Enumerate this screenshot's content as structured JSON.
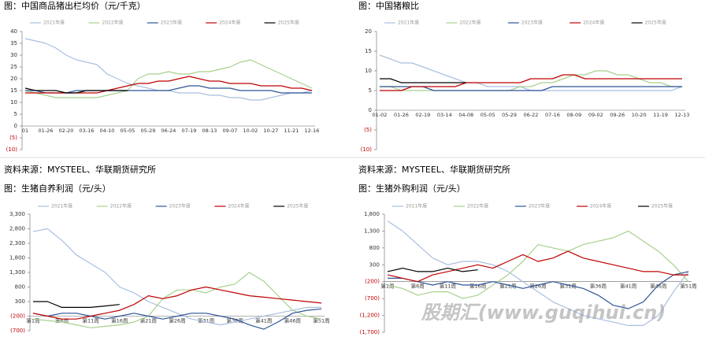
{
  "chart_data": [
    {
      "type": "line",
      "title": "图：中国商品猪出栏均价（元/千克）",
      "source": "资料来源：MYSTEEL、华联期货研究所",
      "categories": [
        "01",
        null,
        "01-26",
        null,
        "02-20",
        null,
        "03-16",
        null,
        "04-10",
        null,
        "05-05",
        null,
        "05-29",
        null,
        "06-24",
        null,
        "07-19",
        null,
        "08-13",
        null,
        "09-07",
        null,
        "10-02",
        null,
        "10-27",
        null,
        "11-21",
        null,
        "12-16"
      ],
      "ylim": [
        -10,
        40
      ],
      "yticks": [
        40,
        35,
        30,
        25,
        20,
        15,
        10,
        5,
        0,
        {
          "value": -5,
          "label": "(5)"
        },
        {
          "value": -10,
          "label": "(10)"
        }
      ],
      "x_axis_at": 0,
      "series": [
        {
          "name": "2021年度",
          "color": "#a9bfe0",
          "values": [
            37,
            36,
            35,
            33,
            30,
            28,
            27,
            26,
            22,
            20,
            18,
            17,
            16,
            15,
            15,
            14,
            14,
            14,
            13,
            13,
            12,
            12,
            11,
            11,
            12,
            13,
            14,
            14,
            15
          ]
        },
        {
          "name": "2022年度",
          "color": "#a8d08d",
          "values": [
            15,
            14,
            13,
            12,
            12,
            12,
            12,
            12,
            13,
            14,
            15,
            20,
            22,
            22,
            23,
            22,
            22,
            23,
            23,
            24,
            25,
            27,
            28,
            26,
            24,
            22,
            20,
            18,
            16
          ]
        },
        {
          "name": "2023年度",
          "color": "#2f5597",
          "values": [
            15,
            15,
            14,
            14,
            14,
            15,
            15,
            15,
            15,
            15,
            15,
            15,
            15,
            15,
            15,
            16,
            17,
            17,
            16,
            16,
            16,
            15,
            15,
            15,
            15,
            14,
            14,
            14,
            14
          ]
        },
        {
          "name": "2024年度",
          "color": "#c00000",
          "values": [
            14,
            14,
            14,
            14,
            14,
            14,
            14,
            14,
            15,
            16,
            17,
            18,
            18,
            19,
            19,
            20,
            21,
            20,
            19,
            19,
            18,
            18,
            18,
            17,
            17,
            17,
            16,
            16,
            15
          ]
        },
        {
          "name": "2025年度",
          "color": "#000000",
          "values": [
            16,
            15,
            15,
            15,
            14,
            14,
            15,
            15,
            15,
            15,
            15,
            null,
            null,
            null,
            null,
            null,
            null,
            null,
            null,
            null,
            null,
            null,
            null,
            null,
            null,
            null,
            null,
            null,
            null
          ]
        }
      ]
    },
    {
      "type": "line",
      "title": "图：中国猪粮比",
      "source": "资料来源：MYSTEEL、华联期货研究所",
      "categories": [
        "01-02",
        null,
        "01-26",
        null,
        "02-19",
        null,
        "03-14",
        null,
        "04-08",
        null,
        "05-05",
        null,
        "05-29",
        null,
        "06-22",
        null,
        "07-16",
        null,
        "08-09",
        null,
        "09-02",
        null,
        "09-26",
        null,
        "10-20",
        null,
        "11-19",
        null,
        "12-13"
      ],
      "ylim": [
        -10,
        20
      ],
      "yticks": [
        20,
        15,
        10,
        5,
        0,
        {
          "value": -5,
          "label": "(5)"
        },
        {
          "value": -10,
          "label": "(10)"
        }
      ],
      "x_axis_at": 0,
      "series": [
        {
          "name": "2021年度",
          "color": "#a9bfe0",
          "values": [
            14,
            13,
            12,
            12,
            11,
            10,
            9,
            8,
            7,
            7,
            6,
            6,
            6,
            6,
            5,
            5,
            5,
            5,
            5,
            5,
            5,
            5,
            5,
            5,
            5,
            5,
            5,
            5,
            6
          ]
        },
        {
          "name": "2022年度",
          "color": "#a8d08d",
          "values": [
            6,
            6,
            5,
            5,
            5,
            5,
            5,
            5,
            5,
            5,
            5,
            5,
            5,
            6,
            6,
            7,
            7,
            8,
            9,
            9,
            10,
            10,
            9,
            9,
            8,
            7,
            7,
            6,
            6
          ]
        },
        {
          "name": "2023年度",
          "color": "#2f5597",
          "values": [
            6,
            6,
            6,
            6,
            6,
            5,
            5,
            5,
            5,
            5,
            5,
            5,
            5,
            5,
            5,
            5,
            6,
            6,
            6,
            6,
            6,
            6,
            6,
            6,
            6,
            6,
            6,
            6,
            6
          ]
        },
        {
          "name": "2024年度",
          "color": "#c00000",
          "values": [
            5,
            5,
            5,
            6,
            6,
            6,
            6,
            6,
            7,
            7,
            7,
            7,
            7,
            7,
            8,
            8,
            8,
            9,
            9,
            8,
            8,
            8,
            8,
            8,
            8,
            8,
            8,
            8,
            8
          ]
        },
        {
          "name": "2025年度",
          "color": "#000000",
          "values": [
            8,
            8,
            7,
            7,
            7,
            7,
            7,
            7,
            7,
            null,
            null,
            null,
            null,
            null,
            null,
            null,
            null,
            null,
            null,
            null,
            null,
            null,
            null,
            null,
            null,
            null,
            null,
            null,
            null
          ]
        }
      ]
    },
    {
      "type": "line",
      "title": "图：生猪自养利润（元/头）",
      "categories": [
        "第1周",
        null,
        "第6周",
        null,
        "第11周",
        null,
        "第16周",
        null,
        "第21周",
        null,
        "第26周",
        null,
        "第31周",
        null,
        "第36周",
        null,
        "第41周",
        null,
        "第46周",
        null,
        "第51周"
      ],
      "ylim": [
        -700,
        3300
      ],
      "yticks": [
        {
          "value": 3300,
          "label": "3,300"
        },
        {
          "value": 2800,
          "label": "2,800"
        },
        {
          "value": 2300,
          "label": "2,300"
        },
        {
          "value": 1800,
          "label": "1,800"
        },
        {
          "value": 1300,
          "label": "1,300"
        },
        800,
        300,
        {
          "value": -200,
          "label": "(200)"
        },
        {
          "value": -700,
          "label": "(700)"
        }
      ],
      "x_axis_at": -200,
      "series": [
        {
          "name": "2021年度",
          "color": "#a9bfe0",
          "values": [
            2700,
            2800,
            2400,
            1900,
            1600,
            1300,
            800,
            600,
            300,
            100,
            -100,
            -300,
            -400,
            -500,
            -400,
            -300,
            -200,
            -100,
            0,
            100,
            100
          ]
        },
        {
          "name": "2022年度",
          "color": "#a8d08d",
          "values": [
            -300,
            -350,
            -400,
            -500,
            -600,
            -550,
            -500,
            -400,
            -200,
            400,
            700,
            700,
            600,
            800,
            900,
            1300,
            1000,
            500,
            0,
            -200,
            -300
          ]
        },
        {
          "name": "2023年度",
          "color": "#2f5597",
          "values": [
            -100,
            -200,
            -100,
            -100,
            -200,
            -300,
            -200,
            -100,
            -200,
            -300,
            -200,
            -100,
            -100,
            -200,
            -300,
            -500,
            -650,
            -400,
            -100,
            0,
            50
          ]
        },
        {
          "name": "2024年度",
          "color": "#c00000",
          "values": [
            -100,
            -200,
            -300,
            -300,
            -200,
            -100,
            0,
            200,
            500,
            400,
            500,
            700,
            800,
            700,
            600,
            500,
            450,
            400,
            350,
            300,
            250
          ]
        },
        {
          "name": "2025年度",
          "color": "#000000",
          "values": [
            300,
            300,
            100,
            100,
            100,
            150,
            200,
            null,
            null,
            null,
            null,
            null,
            null,
            null,
            null,
            null,
            null,
            null,
            null,
            null,
            null
          ]
        }
      ]
    },
    {
      "type": "line",
      "title": "图：生猪外购利润（元/头）",
      "categories": [
        "第1周",
        null,
        "第6周",
        null,
        "第11周",
        null,
        "第16周",
        null,
        "第21周",
        null,
        "第26周",
        null,
        "第31周",
        null,
        "第36周",
        null,
        "第41周",
        null,
        "第46周",
        null,
        "第51周"
      ],
      "ylim": [
        -1700,
        1800
      ],
      "yticks": [
        {
          "value": 1800,
          "label": "1,800"
        },
        {
          "value": 1300,
          "label": "1,300"
        },
        800,
        300,
        {
          "value": -200,
          "label": "(200)"
        },
        {
          "value": -700,
          "label": "(700)"
        },
        {
          "value": -1200,
          "label": "(1,200)"
        },
        {
          "value": -1700,
          "label": "(1,700)"
        }
      ],
      "x_axis_at": -200,
      "series": [
        {
          "name": "2021年度",
          "color": "#a9bfe0",
          "values": [
            1600,
            1300,
            900,
            500,
            300,
            400,
            400,
            300,
            100,
            -200,
            -500,
            -800,
            -1000,
            -1200,
            -1300,
            -1400,
            -1500,
            -1500,
            -1200,
            -500,
            100
          ]
        },
        {
          "name": "2022年度",
          "color": "#a8d08d",
          "values": [
            -300,
            -400,
            -600,
            -500,
            -500,
            -700,
            -600,
            -300,
            0,
            400,
            900,
            800,
            700,
            900,
            1000,
            1100,
            1300,
            1000,
            700,
            300,
            -200
          ]
        },
        {
          "name": "2023年度",
          "color": "#2f5597",
          "values": [
            -100,
            -100,
            -200,
            -300,
            -200,
            -300,
            -300,
            -200,
            -300,
            -400,
            -300,
            -200,
            -300,
            -400,
            -600,
            -900,
            -1000,
            -800,
            -300,
            0,
            100
          ]
        },
        {
          "name": "2024年度",
          "color": "#c00000",
          "values": [
            0,
            -100,
            -200,
            0,
            100,
            200,
            300,
            200,
            400,
            600,
            400,
            500,
            700,
            500,
            400,
            300,
            200,
            100,
            100,
            0,
            0
          ]
        },
        {
          "name": "2025年度",
          "color": "#000000",
          "values": [
            100,
            200,
            100,
            100,
            200,
            100,
            150,
            null,
            null,
            null,
            null,
            null,
            null,
            null,
            null,
            null,
            null,
            null,
            null,
            null,
            null
          ]
        }
      ]
    }
  ],
  "watermark": "股期汇(www.guqihui.cn)"
}
